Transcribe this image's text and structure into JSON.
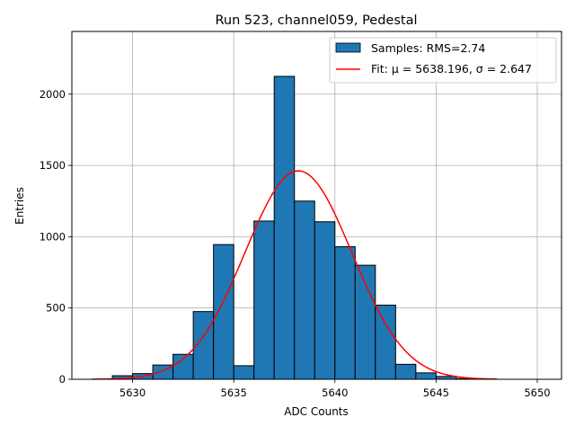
{
  "chart_data": {
    "type": "bar",
    "title": "Run 523, channel059, Pedestal",
    "xlabel": "ADC Counts",
    "ylabel": "Entries",
    "xlim": [
      5627,
      5651.2
    ],
    "ylim": [
      0,
      2440
    ],
    "xticks": [
      5630,
      5635,
      5640,
      5645,
      5650
    ],
    "yticks": [
      0,
      500,
      1000,
      1500,
      2000
    ],
    "grid": true,
    "legend_position": "upper-right",
    "bin_width": 1,
    "bin_edges_start": 5629,
    "values": [
      25,
      40,
      100,
      175,
      475,
      945,
      95,
      1110,
      2125,
      1250,
      1105,
      930,
      800,
      520,
      105,
      45,
      20,
      5,
      0,
      0,
      0
    ],
    "series": [
      {
        "name": "Samples: RMS=2.74",
        "kind": "histogram",
        "color": "#1f77b4"
      },
      {
        "name": "Fit: μ = 5638.196, σ = 2.647",
        "kind": "gaussian",
        "color": "#ff0000",
        "mu": 5638.196,
        "sigma": 2.647,
        "amplitude": 1462,
        "x_range": [
          5628,
          5648
        ]
      }
    ]
  }
}
